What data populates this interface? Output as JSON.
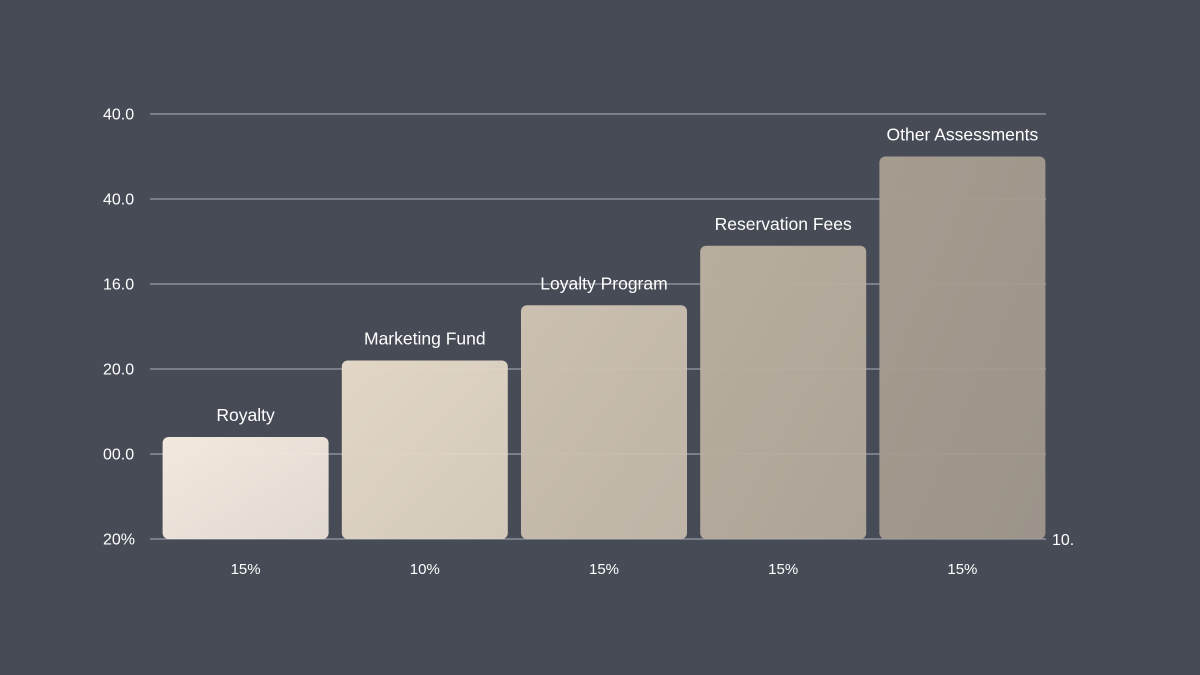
{
  "chart_data": {
    "type": "bar",
    "title": "",
    "xlabel": "",
    "ylabel": "",
    "y_tick_labels": [
      "40.0",
      "40.0",
      "16.0",
      "20.0",
      "00.0",
      "20%"
    ],
    "right_axis_label": "10.",
    "categories": [
      "15%",
      "10%",
      "15%",
      "15%",
      "15%"
    ],
    "series": [
      {
        "bar_labels": [
          "Royalty",
          "Marketing Fund",
          "Loyalty Program",
          "Reservation Fees",
          "Other Assessments"
        ],
        "values": [
          1.2,
          2.1,
          2.75,
          3.45,
          4.5
        ],
        "colors": [
          "#f2e9de",
          "#e2d7c6",
          "#cbc0b0",
          "#b8ae9f",
          "#a59c8f"
        ]
      }
    ],
    "ylim": [
      0,
      5
    ],
    "grid": true,
    "legend": "none"
  }
}
